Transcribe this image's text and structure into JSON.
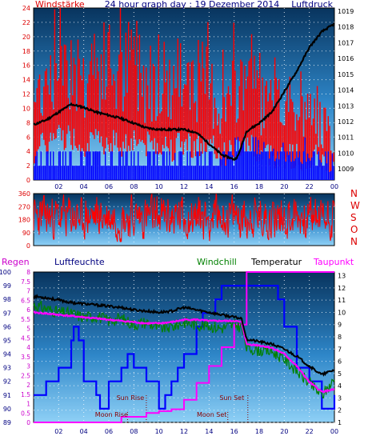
{
  "chart_data": [
    {
      "type": "line",
      "title": "24 hour graph day : 19 Dezember 2014",
      "ylabel_left": "Windstärke",
      "ylabel_right": "Luftdruck",
      "left_ticks": [
        "24",
        "22",
        "20",
        "18",
        "16",
        "14",
        "12",
        "10",
        "8",
        "6",
        "4",
        "2",
        "0"
      ],
      "right_ticks": [
        "1019",
        "1018",
        "1017",
        "1016",
        "1015",
        "1014",
        "1013",
        "1012",
        "1011",
        "1010",
        "1009"
      ],
      "x_ticks": [
        "02",
        "04",
        "06",
        "08",
        "10",
        "12",
        "14",
        "16",
        "18",
        "20",
        "22",
        "00"
      ],
      "ylim_left": [
        0,
        24
      ],
      "ylim_right": [
        1008.3,
        1019.2
      ],
      "series": [
        {
          "name": "Luftdruck",
          "x": [
            0,
            1,
            2,
            3,
            4,
            5,
            6,
            7,
            8,
            9,
            10,
            11,
            12,
            13,
            14,
            15,
            16,
            16.3,
            17,
            18,
            19,
            20,
            21,
            22,
            23,
            24
          ],
          "values": [
            1011.8,
            1012.1,
            1012.6,
            1013.1,
            1012.9,
            1012.6,
            1012.4,
            1012.2,
            1011.9,
            1011.6,
            1011.5,
            1011.5,
            1011.5,
            1011.3,
            1010.6,
            1009.9,
            1009.6,
            1009.8,
            1011.4,
            1011.9,
            1012.6,
            1013.9,
            1015.2,
            1016.7,
            1017.7,
            1018.2
          ]
        },
        {
          "name": "Windstärke",
          "x": [
            0,
            1,
            2,
            3,
            4,
            5,
            6,
            7,
            8,
            9,
            10,
            11,
            12,
            13,
            14,
            15,
            16,
            17,
            18,
            19,
            20,
            21,
            22,
            23,
            24
          ],
          "values": [
            11,
            15,
            18,
            17,
            14,
            15,
            16,
            14,
            17,
            14,
            15,
            13,
            15,
            14,
            13,
            10,
            12,
            16,
            11,
            10,
            10,
            9,
            9,
            8,
            4
          ]
        }
      ]
    },
    {
      "type": "scatter",
      "ylabel_right": "N W S O N",
      "left_ticks": [
        "360",
        "270",
        "180",
        "90",
        "0"
      ],
      "ylim": [
        0,
        360
      ],
      "series": [
        {
          "name": "Windrichtung",
          "x": [
            0,
            2,
            4,
            6,
            8,
            10,
            12,
            14,
            16,
            18,
            20,
            22,
            24
          ],
          "values": [
            180,
            200,
            190,
            210,
            170,
            200,
            190,
            220,
            180,
            200,
            190,
            210,
            180
          ]
        }
      ]
    },
    {
      "type": "line",
      "labels": {
        "regen": "Regen",
        "luftfeuchte": "Luftfeuchte",
        "windchill": "Windchill",
        "temperatur": "Temperatur",
        "taupunkt": "Taupunkt"
      },
      "humidity_ticks": [
        "100",
        "99",
        "98",
        "97",
        "96",
        "95",
        "94",
        "93",
        "92",
        "91",
        "90",
        "89"
      ],
      "rain_ticks": [
        "8",
        "7.5",
        "7",
        "6.5",
        "6",
        "5.5",
        "5",
        "4.5",
        "4",
        "3.5",
        "3",
        "2.5",
        "2",
        "1.5",
        "1",
        "0.5",
        "0"
      ],
      "temp_ticks": [
        "13",
        "12",
        "11",
        "10",
        "9",
        "8",
        "7",
        "6",
        "5",
        "4",
        "3",
        "2",
        "1"
      ],
      "x_ticks": [
        "02",
        "04",
        "06",
        "08",
        "10",
        "12",
        "14",
        "16",
        "18",
        "20",
        "22",
        "00"
      ],
      "ylim_humidity": [
        89,
        100
      ],
      "ylim_rain": [
        0,
        8
      ],
      "ylim_temp": [
        1,
        13.3
      ],
      "series": [
        {
          "name": "Temperatur",
          "x": [
            0,
            1,
            2,
            3,
            4,
            5,
            6,
            7,
            8,
            9,
            10,
            11,
            12,
            13,
            14,
            15,
            16,
            16.6,
            17,
            18,
            19,
            20,
            21,
            22,
            23,
            24
          ],
          "values": [
            11.3,
            11.2,
            11,
            10.8,
            10.7,
            10.6,
            10.5,
            10.4,
            10.2,
            10.1,
            10,
            10.1,
            10.4,
            10.2,
            10,
            9.8,
            9.6,
            9.5,
            7.8,
            7.6,
            7.4,
            7,
            6.4,
            5.6,
            4.9,
            5.3
          ]
        },
        {
          "name": "Taupunkt",
          "x": [
            0,
            1,
            2,
            3,
            4,
            5,
            6,
            7,
            8,
            9,
            10,
            11,
            12,
            13,
            14,
            15,
            16,
            16.6,
            17,
            18,
            19,
            20,
            21,
            22,
            23,
            24
          ],
          "values": [
            10,
            9.9,
            9.8,
            9.7,
            9.6,
            9.5,
            9.4,
            9.3,
            9.2,
            9.1,
            9.1,
            9.2,
            9.4,
            9.4,
            9.3,
            9.3,
            9.3,
            9.2,
            7.4,
            7.3,
            7.1,
            6.6,
            5.6,
            4.3,
            3.5,
            3.7
          ]
        },
        {
          "name": "Windchill",
          "x": [
            0,
            1,
            2,
            3,
            4,
            5,
            6,
            7,
            8,
            9,
            10,
            11,
            12,
            13,
            14,
            15,
            16,
            16.6,
            17,
            18,
            19,
            20,
            21,
            22,
            23,
            24
          ],
          "values": [
            10.6,
            10.3,
            10,
            9.9,
            9.6,
            9.7,
            9.3,
            9.5,
            9,
            9.2,
            8.7,
            8.8,
            9.2,
            9,
            8.9,
            8.7,
            9,
            8.8,
            7.1,
            6.9,
            6.8,
            6.2,
            5.2,
            4.2,
            3.2,
            4.5
          ]
        },
        {
          "name": "Luftfeuchte",
          "x": [
            0,
            1,
            2,
            3,
            3.2,
            3.6,
            4,
            5,
            5.3,
            6,
            7,
            7.5,
            8,
            9,
            10,
            10.5,
            11,
            11.5,
            12,
            13,
            13.5,
            14,
            14.5,
            15,
            16,
            17,
            18,
            19,
            19.5,
            20,
            21,
            22,
            23,
            24
          ],
          "values": [
            91,
            92,
            93,
            95,
            96,
            95,
            92,
            91,
            90,
            92,
            93,
            94,
            93,
            92,
            90,
            91,
            92,
            93,
            94,
            96,
            97,
            97,
            98,
            99,
            99,
            99,
            99,
            99,
            98,
            96,
            93,
            92,
            90,
            91
          ]
        },
        {
          "name": "Regen",
          "x": [
            0,
            5,
            7,
            9,
            10,
            11,
            12,
            13,
            14,
            15,
            16,
            17,
            18,
            19,
            20,
            21,
            22,
            23,
            24
          ],
          "values": [
            0,
            0,
            0.3,
            0.5,
            0.6,
            0.7,
            1.2,
            2.1,
            3.0,
            4.0,
            5.2,
            8.0,
            8.0,
            8.0,
            8.0,
            8.0,
            8.0,
            8.0,
            8.0
          ]
        }
      ],
      "annotations": [
        "Sun Rise",
        "Sun Set",
        "Moon Rise",
        "Moon Set"
      ]
    }
  ],
  "colors": {
    "wind": "#ff0000",
    "wind_gust_band": "#0000ff",
    "pressure": "#000000",
    "temperature": "#000000",
    "dewpoint": "#ff00ff",
    "windchill": "#008000",
    "humidity": "#0000ff",
    "rain": "#ff00ff",
    "label_red": "#dd0000",
    "label_navy": "#000080"
  }
}
